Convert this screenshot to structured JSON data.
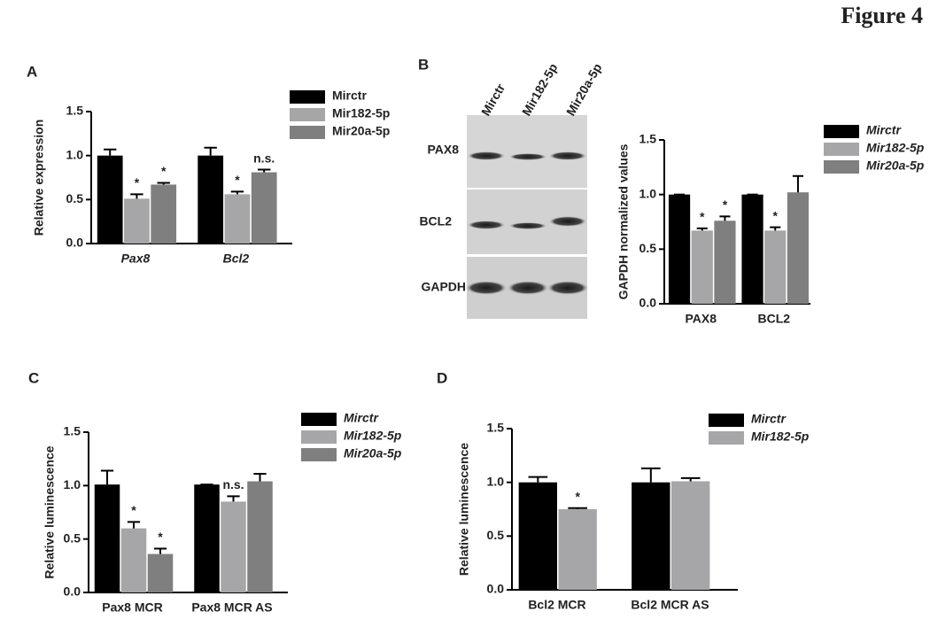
{
  "figure_title": "Figure 4",
  "blot": {
    "panel": "B",
    "lanes": [
      "Mirctr",
      "Mir182-5p",
      "Mir20a-5p"
    ],
    "rows": [
      "PAX8",
      "BCL2",
      "GAPDH"
    ]
  },
  "chart_data": [
    {
      "type": "bar",
      "panel": "A",
      "y_label": "Relative expression",
      "categories": [
        "Pax8",
        "Bcl2"
      ],
      "ylim": [
        0,
        1.5
      ],
      "yticks": [
        {
          "value": 0,
          "label": "0.0"
        },
        {
          "value": 0.5,
          "label": "0.5"
        },
        {
          "value": 1,
          "label": "1.0"
        },
        {
          "value": 1.5,
          "label": "1.5"
        }
      ],
      "series": [
        {
          "name": "Mirctr",
          "color": "#000000",
          "values": [
            1.0,
            1.0
          ],
          "errors": [
            0.07,
            0.09
          ],
          "annotations": [
            null,
            null
          ]
        },
        {
          "name": "Mir182-5p",
          "color": "#a6a6a8",
          "values": [
            0.51,
            0.56
          ],
          "errors": [
            0.05,
            0.03
          ],
          "annotations": [
            "*",
            "*"
          ]
        },
        {
          "name": "Mir20a-5p",
          "color": "#7f7f7f",
          "values": [
            0.67,
            0.81
          ],
          "errors": [
            0.02,
            0.03
          ],
          "annotations": [
            "*",
            "n.s."
          ]
        }
      ]
    },
    {
      "type": "bar",
      "panel": "B",
      "y_label": "GAPDH normalized values",
      "categories": [
        "PAX8",
        "BCL2"
      ],
      "ylim": [
        0,
        1.5
      ],
      "yticks": [
        {
          "value": 0,
          "label": "0.0"
        },
        {
          "value": 0.5,
          "label": "0.5"
        },
        {
          "value": 1,
          "label": "1.0"
        },
        {
          "value": 1.5,
          "label": "1.5"
        }
      ],
      "series": [
        {
          "name": "Mirctr",
          "color": "#000000",
          "values": [
            1.0,
            1.0
          ],
          "errors": [
            0,
            0
          ],
          "annotations": [
            null,
            null
          ]
        },
        {
          "name": "Mir182-5p",
          "color": "#a6a6a8",
          "values": [
            0.67,
            0.67
          ],
          "errors": [
            0.02,
            0.03
          ],
          "annotations": [
            "*",
            "*"
          ]
        },
        {
          "name": "Mir20a-5p",
          "color": "#7f7f7f",
          "values": [
            0.76,
            1.02
          ],
          "errors": [
            0.04,
            0.15
          ],
          "annotations": [
            "*",
            null
          ]
        }
      ]
    },
    {
      "type": "bar",
      "panel": "C",
      "y_label": "Relative luminescence",
      "categories": [
        "Pax8 MCR",
        "Pax8 MCR AS"
      ],
      "ylim": [
        0,
        1.5
      ],
      "yticks": [
        {
          "value": 0,
          "label": "0.0"
        },
        {
          "value": 0.5,
          "label": "0.5"
        },
        {
          "value": 1,
          "label": "1.0"
        },
        {
          "value": 1.5,
          "label": "1.5"
        }
      ],
      "series": [
        {
          "name": "Mirctr",
          "color": "#000000",
          "values": [
            1.01,
            1.01
          ],
          "errors": [
            0.13,
            0
          ],
          "annotations": [
            null,
            null
          ]
        },
        {
          "name": "Mir182-5p",
          "color": "#a6a6a8",
          "values": [
            0.6,
            0.85
          ],
          "errors": [
            0.06,
            0.05
          ],
          "annotations": [
            "*",
            "n.s."
          ]
        },
        {
          "name": "Mir20a-5p",
          "color": "#7f7f7f",
          "values": [
            0.36,
            1.04
          ],
          "errors": [
            0.05,
            0.07
          ],
          "annotations": [
            "*",
            null
          ]
        }
      ]
    },
    {
      "type": "bar",
      "panel": "D",
      "y_label": "Relative luminescence",
      "categories": [
        "Bcl2 MCR",
        "Bcl2 MCR AS"
      ],
      "ylim": [
        0,
        1.5
      ],
      "yticks": [
        {
          "value": 0,
          "label": "0.0"
        },
        {
          "value": 0.5,
          "label": "0.5"
        },
        {
          "value": 1,
          "label": "1.0"
        },
        {
          "value": 1.5,
          "label": "1.5"
        }
      ],
      "series": [
        {
          "name": "Mirctr",
          "color": "#000000",
          "values": [
            1.0,
            1.0
          ],
          "errors": [
            0.05,
            0.13
          ],
          "annotations": [
            null,
            null
          ]
        },
        {
          "name": "Mir182-5p",
          "color": "#a6a6a8",
          "values": [
            0.75,
            1.01
          ],
          "errors": [
            0.01,
            0.03
          ],
          "annotations": [
            "*",
            null
          ]
        }
      ]
    }
  ]
}
